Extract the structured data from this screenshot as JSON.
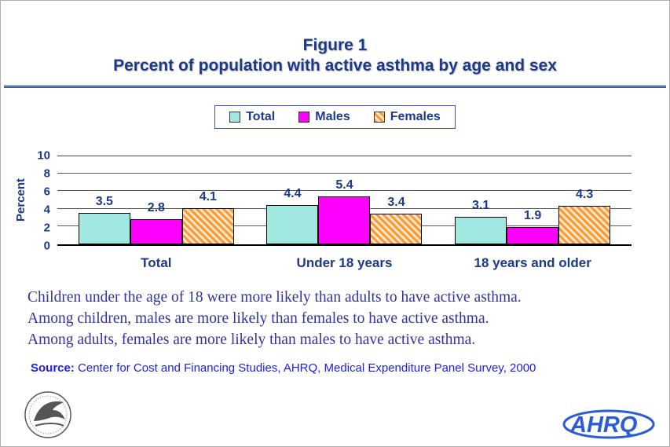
{
  "title": {
    "line1": "Figure 1",
    "line2": "Percent of population with active asthma by age and sex"
  },
  "legend": [
    {
      "label": "Total",
      "color": "#a0e8e0",
      "hatch": false
    },
    {
      "label": "Males",
      "color": "#ff00ff",
      "hatch": false
    },
    {
      "label": "Females",
      "color": "#ff9933",
      "hatch": true
    }
  ],
  "chart_data": {
    "type": "bar",
    "title": "Figure 1 - Percent of population with active asthma by age and sex",
    "categories": [
      "Total",
      "Under 18 years",
      "18 years and older"
    ],
    "series": [
      {
        "name": "Total",
        "values": [
          3.5,
          4.4,
          3.1
        ]
      },
      {
        "name": "Males",
        "values": [
          2.8,
          5.4,
          1.9
        ]
      },
      {
        "name": "Females",
        "values": [
          4.1,
          3.4,
          4.3
        ]
      }
    ],
    "xlabel": "",
    "ylabel": "Percent",
    "ylim": [
      0,
      10
    ],
    "yticks": [
      0,
      2,
      4,
      6,
      8,
      10
    ],
    "grid": true,
    "legend_position": "top",
    "data_labels": true
  },
  "notes": [
    "Children under the age of 18 were more likely than adults to have active asthma.",
    "Among children, males are more likely than females to have active asthma.",
    "Among adults, females are more likely than males to have active asthma."
  ],
  "source": {
    "label": "Source:",
    "text": " Center for Cost and Financing Studies, AHRQ, Medical Expenditure Panel Survey, 2000"
  },
  "logos": {
    "ahrq": "AHRQ"
  }
}
